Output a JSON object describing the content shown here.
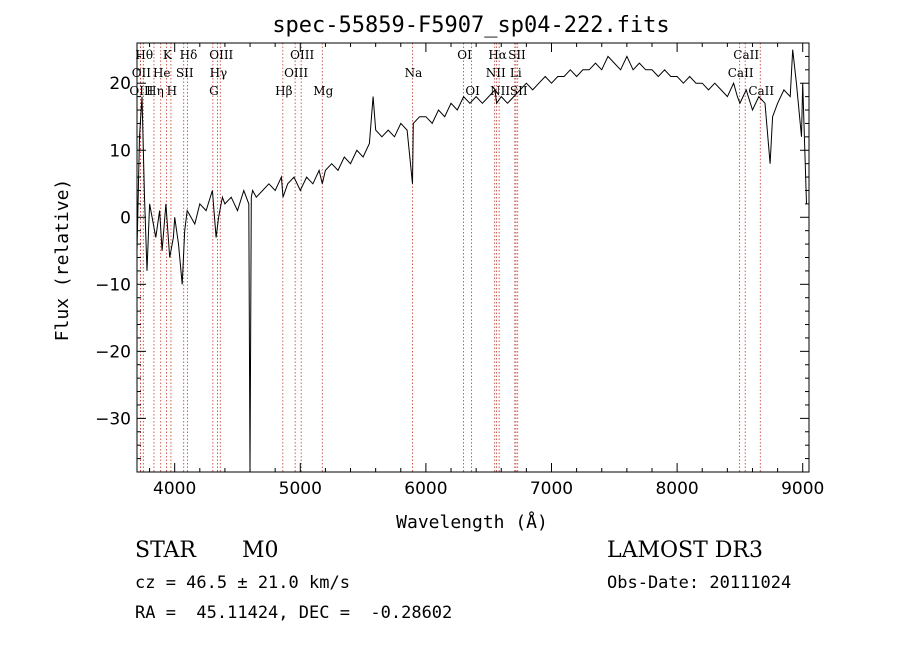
{
  "chart_data": {
    "type": "line",
    "title": "spec-55859-F5907_sp04-222.fits",
    "xlabel": "Wavelength (Å)",
    "ylabel": "Flux (relative)",
    "xlim": [
      3700,
      9050
    ],
    "ylim": [
      -38,
      26
    ],
    "xticks": [
      4000,
      5000,
      6000,
      7000,
      8000,
      9000
    ],
    "yticks": [
      -30,
      -20,
      -10,
      0,
      10,
      20
    ],
    "line_color": "#000000",
    "marker_color": "#c0392b",
    "series": [
      {
        "name": "flux",
        "x": [
          3700,
          3720,
          3740,
          3760,
          3780,
          3800,
          3820,
          3850,
          3880,
          3900,
          3930,
          3960,
          3990,
          4000,
          4030,
          4060,
          4080,
          4100,
          4130,
          4160,
          4200,
          4250,
          4300,
          4330,
          4350,
          4380,
          4400,
          4450,
          4500,
          4550,
          4590,
          4600,
          4610,
          4620,
          4650,
          4700,
          4750,
          4800,
          4850,
          4862,
          4900,
          4950,
          5000,
          5050,
          5100,
          5150,
          5175,
          5200,
          5250,
          5300,
          5350,
          5400,
          5450,
          5500,
          5550,
          5580,
          5600,
          5650,
          5700,
          5750,
          5800,
          5850,
          5893,
          5900,
          5950,
          6000,
          6050,
          6100,
          6150,
          6200,
          6250,
          6300,
          6350,
          6400,
          6450,
          6500,
          6550,
          6563,
          6600,
          6650,
          6700,
          6750,
          6800,
          6850,
          6900,
          6950,
          7000,
          7050,
          7100,
          7150,
          7200,
          7250,
          7300,
          7350,
          7400,
          7450,
          7500,
          7550,
          7600,
          7650,
          7700,
          7750,
          7800,
          7850,
          7900,
          7950,
          8000,
          8050,
          8100,
          8150,
          8200,
          8250,
          8300,
          8350,
          8400,
          8450,
          8480,
          8500,
          8550,
          8600,
          8650,
          8700,
          8740,
          8760,
          8800,
          8850,
          8900,
          8920,
          8950,
          8990,
          9000,
          9030
        ],
        "y": [
          -5,
          12,
          18,
          3,
          -8,
          2,
          0,
          -3,
          1,
          -5,
          2,
          -6,
          -3,
          0,
          -4,
          -10,
          -2,
          1,
          0,
          -1,
          2,
          1,
          4,
          -3,
          0,
          3,
          2,
          3,
          1,
          4,
          2,
          -38,
          3,
          4,
          3,
          4,
          5,
          4,
          6,
          3,
          5,
          6,
          4,
          6,
          5,
          7,
          5,
          7,
          8,
          7,
          9,
          8,
          10,
          9,
          11,
          18,
          13,
          12,
          13,
          12,
          14,
          13,
          5,
          14,
          15,
          15,
          14,
          16,
          15,
          17,
          16,
          18,
          17,
          18,
          17,
          18,
          19,
          17,
          18,
          17,
          18,
          19,
          20,
          19,
          20,
          21,
          20,
          21,
          21,
          22,
          21,
          22,
          22,
          23,
          22,
          24,
          23,
          22,
          24,
          22,
          23,
          22,
          22,
          21,
          22,
          21,
          21,
          20,
          21,
          20,
          20,
          19,
          20,
          19,
          18,
          20,
          18,
          17,
          19,
          16,
          18,
          17,
          8,
          15,
          17,
          19,
          18,
          25,
          20,
          12,
          20,
          2
        ]
      }
    ],
    "line_marks": [
      {
        "label": "Hθ",
        "wl": 3750,
        "row": 0
      },
      {
        "label": "K",
        "wl": 3934,
        "row": 0
      },
      {
        "label": "Hδ",
        "wl": 4102,
        "row": 0
      },
      {
        "label": "OIII",
        "wl": 4363,
        "row": 0
      },
      {
        "label": "OIII",
        "wl": 5007,
        "row": 0
      },
      {
        "label": "OI",
        "wl": 6300,
        "row": 0
      },
      {
        "label": "Hα",
        "wl": 6563,
        "row": 0
      },
      {
        "label": "SII",
        "wl": 6717,
        "row": 0
      },
      {
        "label": "CaII",
        "wl": 8542,
        "row": 0
      },
      {
        "label": "OII",
        "wl": 3727,
        "row": 1
      },
      {
        "label": "He",
        "wl": 3889,
        "row": 1
      },
      {
        "label": "SII",
        "wl": 4072,
        "row": 1
      },
      {
        "label": "Hγ",
        "wl": 4340,
        "row": 1
      },
      {
        "label": "OIII",
        "wl": 4959,
        "row": 1
      },
      {
        "label": "Na",
        "wl": 5893,
        "row": 1
      },
      {
        "label": "NII",
        "wl": 6548,
        "row": 1
      },
      {
        "label": "Li",
        "wl": 6708,
        "row": 1
      },
      {
        "label": "CaII",
        "wl": 8498,
        "row": 1
      },
      {
        "label": "OIII",
        "wl": 3727,
        "row": 2
      },
      {
        "label": "Hη",
        "wl": 3835,
        "row": 2
      },
      {
        "label": "H",
        "wl": 3970,
        "row": 2
      },
      {
        "label": "G",
        "wl": 4304,
        "row": 2
      },
      {
        "label": "Hβ",
        "wl": 4861,
        "row": 2
      },
      {
        "label": "Mg",
        "wl": 5175,
        "row": 2
      },
      {
        "label": "OI",
        "wl": 6364,
        "row": 2
      },
      {
        "label": "NII",
        "wl": 6583,
        "row": 2
      },
      {
        "label": "SII",
        "wl": 6731,
        "row": 2
      },
      {
        "label": "CaII",
        "wl": 8662,
        "row": 2
      }
    ]
  },
  "info": {
    "class": "STAR",
    "subclass": "M0",
    "survey": "LAMOST DR3",
    "cz": "cz = 46.5 ± 21.0 km/s",
    "obs_date": "Obs-Date: 20111024",
    "coords": "RA =  45.11424, DEC =  -0.28602"
  }
}
